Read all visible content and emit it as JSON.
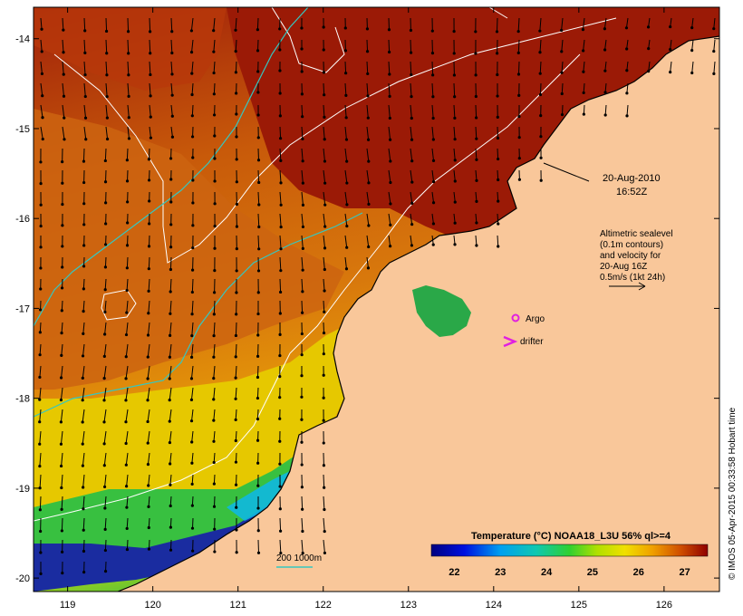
{
  "map": {
    "date": "20-Aug-2010",
    "time": "16:52Z",
    "legend_lines": [
      "Altimetric sealevel",
      "(0.1m contours)",
      "and velocity for",
      "20-Aug 16Z",
      "0.5m/s (1kt 24h)"
    ],
    "markers": {
      "argo_label": "Argo",
      "drifter_label": "drifter"
    },
    "bathymetry_label": "200  1000m",
    "credit": "© IMOS 05-Apr-2015 00:33:58 Hobart time",
    "colorbar": {
      "title": "Temperature (°C) NOAA18_L3U 56% ql>=4",
      "ticks": [
        "22",
        "23",
        "24",
        "25",
        "26",
        "27"
      ],
      "values": [
        22,
        23,
        24,
        25,
        26,
        27
      ],
      "range": [
        21.5,
        27.5
      ]
    },
    "axes": {
      "x_ticks": [
        "119",
        "120",
        "121",
        "122",
        "123",
        "124",
        "125",
        "126"
      ],
      "x_values": [
        119,
        120,
        121,
        122,
        123,
        124,
        125,
        126
      ],
      "y_ticks": [
        "-14",
        "-15",
        "-16",
        "-17",
        "-18",
        "-19",
        "-20"
      ],
      "y_values": [
        -14,
        -15,
        -16,
        -17,
        -18,
        -19,
        -20
      ],
      "x_range": [
        118.6,
        126.65
      ],
      "y_range": [
        -20.15,
        -13.65
      ]
    },
    "colors": {
      "land": "#f9c79a",
      "ocean_warm": "#9b1d08",
      "ocean_mid": "#d4700a",
      "ocean_cool": "#2a3fa8",
      "contour": "#ffffff",
      "isobath": "#35c7c0",
      "argo": "#e020e0",
      "drifter": "#e020e0",
      "arrow": "#000000"
    }
  }
}
